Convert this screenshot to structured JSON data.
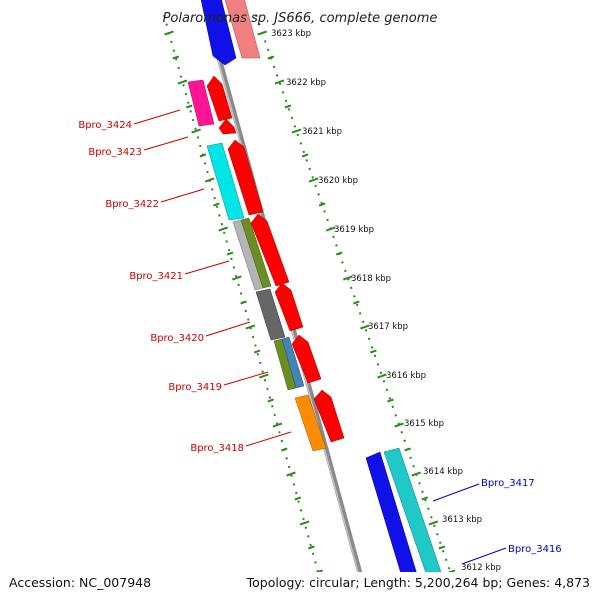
{
  "title": "Polaromonas sp. JS666, complete genome",
  "footer": {
    "accession": "Accession: NC_007948",
    "topology": "Topology: circular; Length: 5,200,264 bp; Genes: 4,873"
  },
  "colors": {
    "reverse_label": "#cc0000",
    "forward_label": "#0000cc",
    "tick": "#2a8a1a",
    "backbone": "#8a8a8a"
  },
  "ticks": [
    "3623 kbp",
    "3622 kbp",
    "3621 kbp",
    "3620 kbp",
    "3619 kbp",
    "3618 kbp",
    "3617 kbp",
    "3616 kbp",
    "3615 kbp",
    "3614 kbp",
    "3613 kbp",
    "3612 kbp"
  ],
  "gene_labels": [
    {
      "text": "Bpro_3424",
      "strand": "reverse"
    },
    {
      "text": "Bpro_3423",
      "strand": "reverse"
    },
    {
      "text": "Bpro_3422",
      "strand": "reverse"
    },
    {
      "text": "Bpro_3421",
      "strand": "reverse"
    },
    {
      "text": "Bpro_3420",
      "strand": "reverse"
    },
    {
      "text": "Bpro_3419",
      "strand": "reverse"
    },
    {
      "text": "Bpro_3418",
      "strand": "reverse"
    },
    {
      "text": "Bpro_3417",
      "strand": "forward"
    },
    {
      "text": "Bpro_3416",
      "strand": "forward"
    }
  ]
}
